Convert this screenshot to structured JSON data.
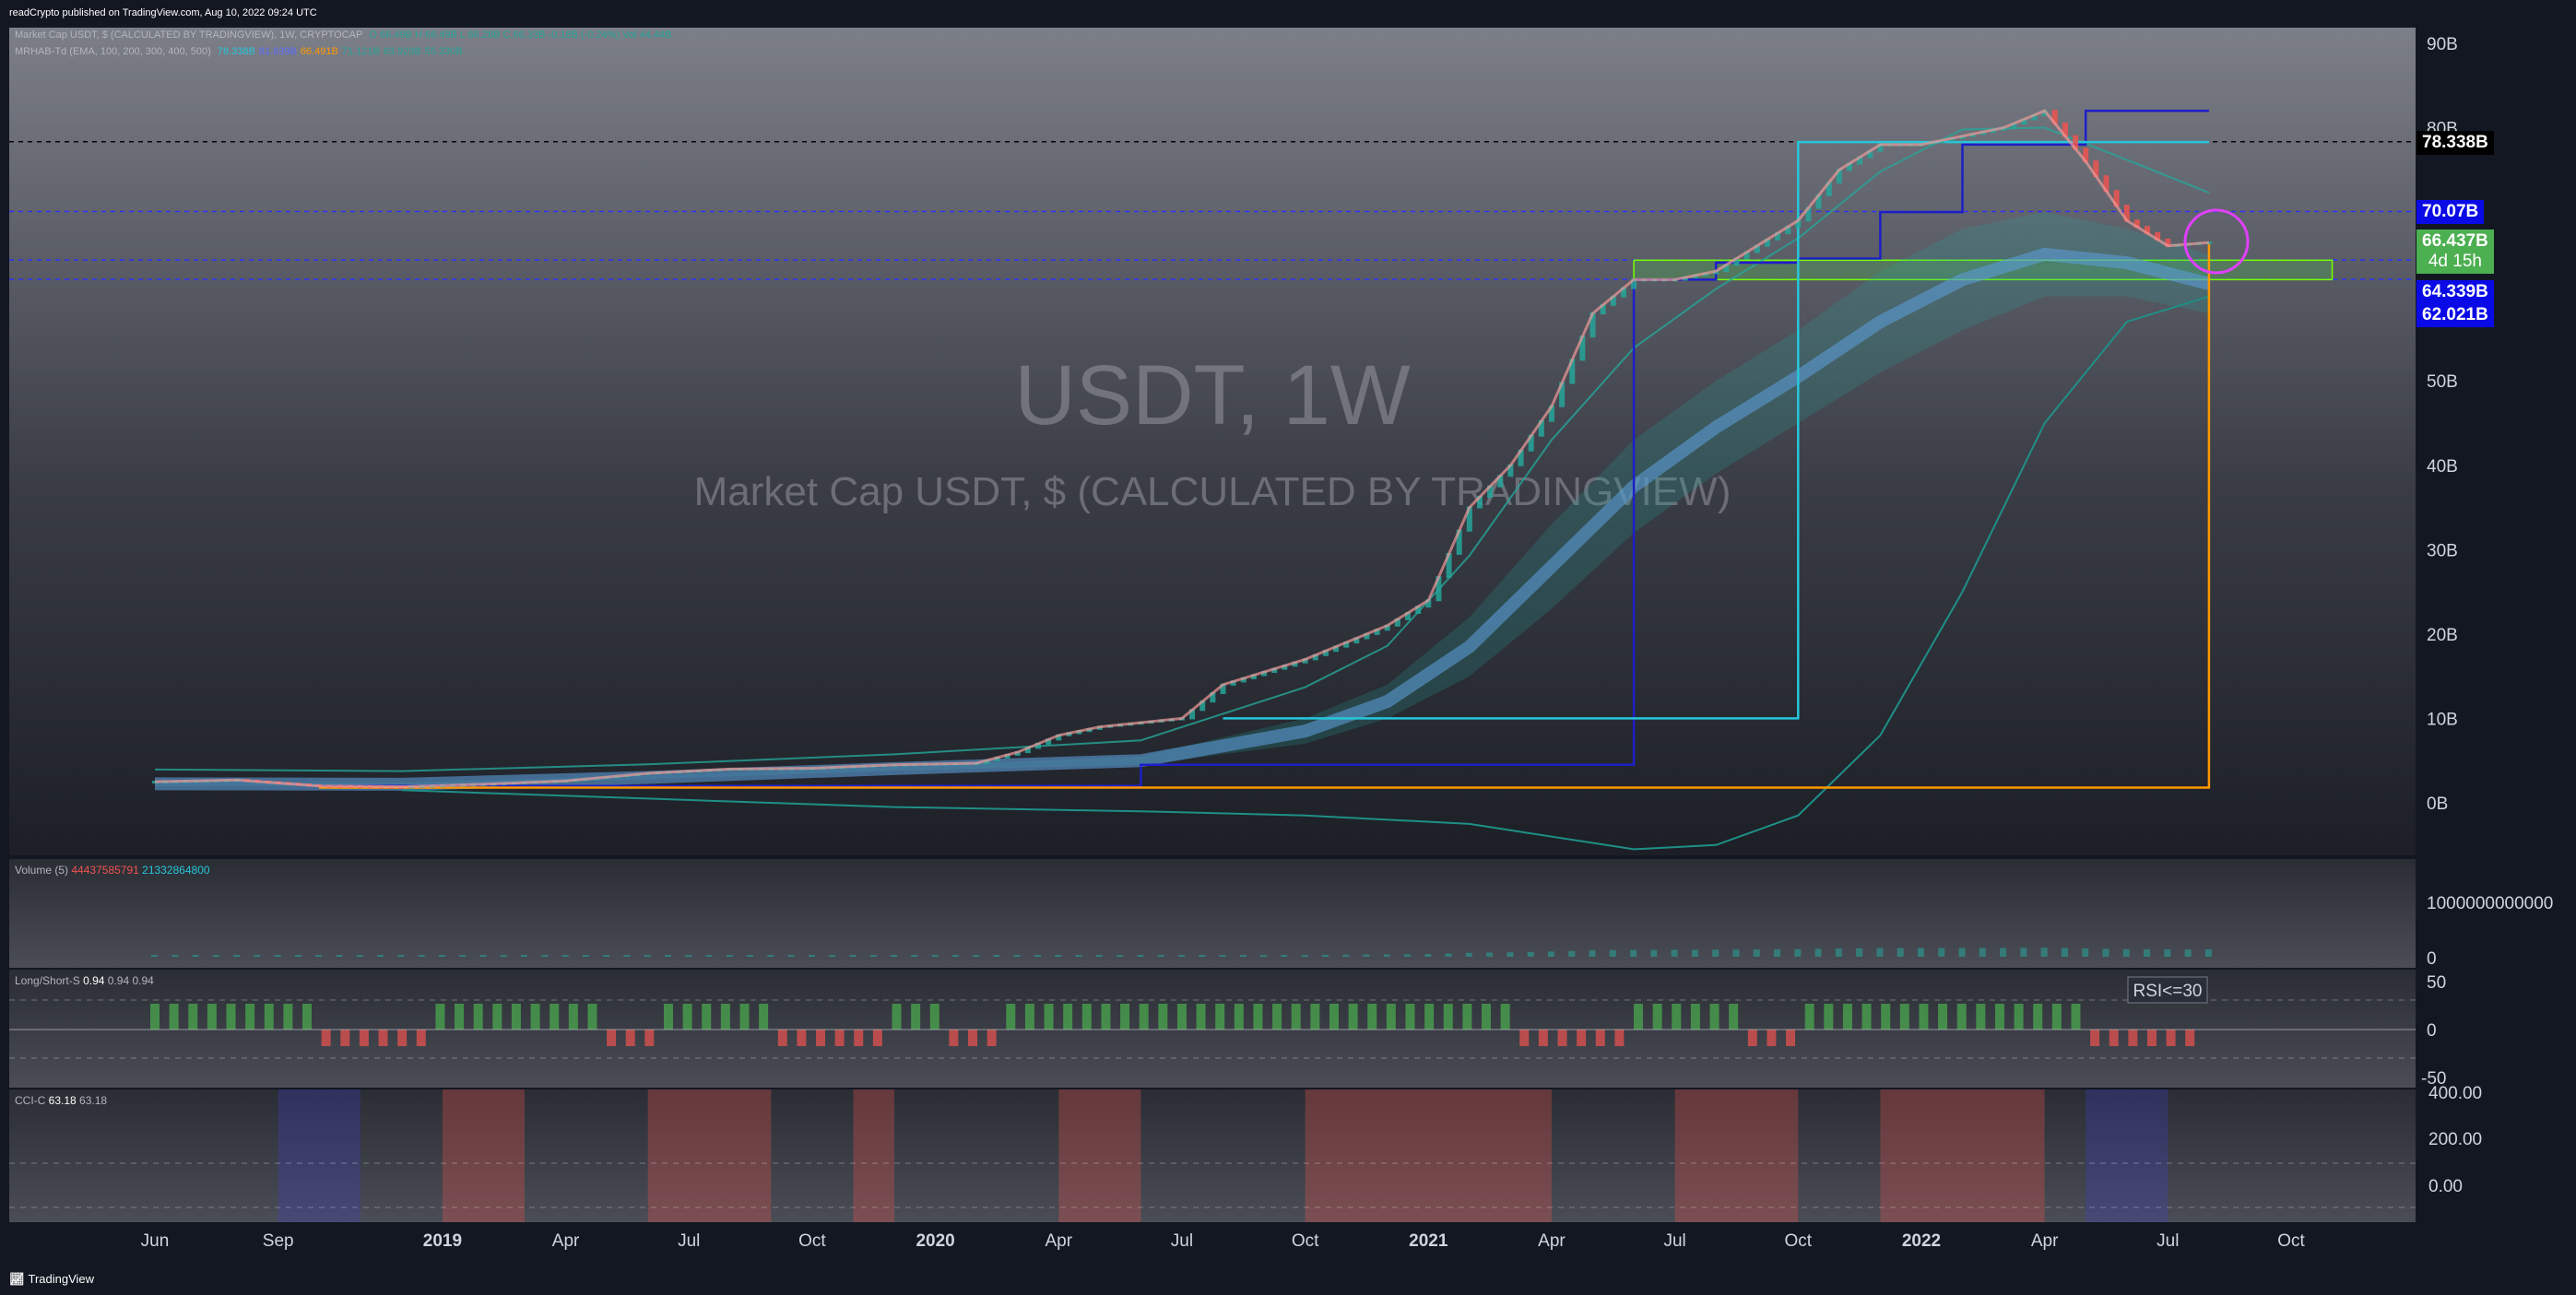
{
  "header": {
    "published": "readCrypto published on TradingView.com, Aug 10, 2022 09:24 UTC"
  },
  "legend": {
    "symbol_line": "Market Cap USDT, $ (CALCULATED BY TRADINGVIEW), 1W, CRYPTOCAP",
    "symbol_values": "O 66.49B  H 66.49B  L 66.28B  C 66.33B  -0.16B (-0.24%)  Vol 44.44B",
    "indicator_name": "MRHAB-Td (EMA, 100, 200, 300, 400, 500)",
    "indicator_values": [
      {
        "text": "78.338B",
        "color": "#26c6da"
      },
      {
        "text": "81.839B",
        "color": "#5b6bff"
      },
      {
        "text": "66.491B",
        "color": "#ff9800"
      },
      {
        "text": "71.121B",
        "color": "#26a69a"
      },
      {
        "text": "63.923B",
        "color": "#26a69a"
      },
      {
        "text": "55.330B",
        "color": "#26a69a"
      }
    ]
  },
  "watermark": {
    "line1": "USDT, 1W",
    "line2": "Market Cap USDT, $ (CALCULATED BY TRADINGVIEW)"
  },
  "price_labels": [
    {
      "text": "78.338B",
      "bg": "#000000",
      "fg": "#ffffff",
      "value": 78.338
    },
    {
      "text": "70.07B",
      "bg": "#0a0ae6",
      "fg": "#ffffff",
      "value": 70.07
    },
    {
      "text": "66.437B",
      "text2": "4d 15h",
      "bg": "#4caf50",
      "fg": "#ffffff",
      "value": 66.437
    },
    {
      "text": "64.339B",
      "bg": "#0a0ae6",
      "fg": "#ffffff",
      "value": 64.339
    },
    {
      "text": "62.021B",
      "bg": "#0a0ae6",
      "fg": "#ffffff",
      "value": 62.021
    }
  ],
  "panes": {
    "volume": {
      "label": "Volume (5)",
      "value1": "44437585791",
      "value2": "21332864800",
      "axis_ticks": [
        "1000000000000",
        "0"
      ]
    },
    "longshort": {
      "label": "Long/Short-S",
      "values": [
        "0.94",
        "0.94",
        "0.94"
      ],
      "axis_ticks": [
        "50",
        "0",
        "-50"
      ],
      "badge": "RSI<=30"
    },
    "cci": {
      "label": "CCI-C",
      "values": [
        "63.18",
        "63.18"
      ],
      "axis_ticks": [
        "400.00",
        "200.00",
        "0.00"
      ]
    }
  },
  "footer": {
    "brand": "TradingView"
  },
  "colors": {
    "background": "#131722",
    "bull": "#26a69a",
    "bear": "#ef5350",
    "cyan": "#26c6da",
    "blue": "#1e1ec8",
    "orange": "#ff9800",
    "magenta": "#e040fb"
  },
  "chart_data": {
    "type": "line",
    "title": "USDT, 1W",
    "subtitle": "Market Cap USDT, $ (CALCULATED BY TRADINGVIEW)",
    "xlabel": "",
    "ylabel": "",
    "y_unit": "B",
    "ylim": [
      -6,
      92
    ],
    "y_ticks": [
      0,
      10,
      20,
      30,
      40,
      50,
      80,
      90
    ],
    "x_ticks": [
      "Jun",
      "Sep",
      "2019",
      "Apr",
      "Jul",
      "Oct",
      "2020",
      "Apr",
      "Jul",
      "Oct",
      "2021",
      "Apr",
      "Jul",
      "Oct",
      "2022",
      "Apr",
      "Jul",
      "Oct"
    ],
    "x_tick_months": [
      0,
      3,
      7,
      10,
      13,
      16,
      19,
      22,
      25,
      28,
      31,
      34,
      37,
      40,
      43,
      46,
      49,
      52
    ],
    "grid": false,
    "horizontal_levels": [
      78.338,
      70.07,
      64.339,
      62.021
    ],
    "series": [
      {
        "name": "",
        "months": [
          0,
          2,
          4,
          6,
          8,
          10,
          12,
          14,
          16,
          18,
          20,
          21,
          22,
          23,
          24,
          25,
          26,
          27,
          28,
          29,
          30,
          31,
          32,
          33,
          34,
          35,
          36,
          37,
          38,
          39,
          40,
          41,
          42,
          43,
          44,
          45,
          46,
          47,
          48,
          49,
          50
        ],
        "values": [
          2.5,
          2.7,
          2.0,
          1.9,
          2.2,
          2.6,
          3.5,
          4.0,
          4.1,
          4.5,
          4.7,
          6.0,
          8.0,
          9.0,
          9.5,
          10.0,
          14.0,
          15.5,
          17.0,
          19.0,
          21.0,
          24.0,
          35.0,
          40.0,
          47.0,
          58.0,
          62.0,
          62.0,
          63.0,
          66.0,
          69.0,
          75.0,
          78.0,
          78.0,
          79.0,
          80.0,
          82.0,
          76.0,
          69.0,
          66.0,
          66.4
        ]
      }
    ],
    "ema_bands": {
      "months": [
        0,
        6,
        12,
        18,
        24,
        28,
        30,
        32,
        34,
        36,
        38,
        40,
        42,
        44,
        46,
        48,
        50
      ],
      "upper": [
        2.5,
        2.4,
        3.2,
        4.3,
        5.5,
        10.0,
        14.0,
        22.0,
        33.0,
        43.0,
        50.0,
        56.0,
        63.0,
        68.0,
        70.0,
        68.0,
        65.0
      ],
      "lower": [
        2.0,
        2.0,
        2.8,
        3.8,
        4.5,
        7.0,
        10.0,
        15.0,
        23.0,
        32.0,
        39.0,
        45.0,
        51.0,
        56.0,
        60.0,
        60.0,
        58.0
      ]
    },
    "long_ema": {
      "months": [
        6,
        12,
        18,
        24,
        28,
        32,
        36,
        38,
        40,
        42,
        44,
        46,
        48,
        50
      ],
      "values": [
        1.5,
        0.5,
        -0.5,
        -1.0,
        -1.5,
        -2.5,
        -5.5,
        -5.0,
        -1.5,
        8.0,
        25.0,
        45.0,
        57.0,
        60.0
      ]
    },
    "step_lines": [
      {
        "name": "",
        "color": "#1e1ec8",
        "months": [
          4,
          24,
          24,
          36,
          36,
          38,
          38,
          40,
          40,
          42,
          42,
          44,
          44,
          47,
          47,
          50
        ],
        "values": [
          2.0,
          2.0,
          4.5,
          4.5,
          62.0,
          62.0,
          64.0,
          64.0,
          64.5,
          64.5,
          70.0,
          70.0,
          78.0,
          78.0,
          82.0,
          82.0
        ]
      },
      {
        "name": "",
        "color": "#26c6da",
        "months": [
          26,
          40,
          40,
          50
        ],
        "values": [
          10.0,
          10.0,
          78.3,
          78.3
        ]
      },
      {
        "name": "",
        "color": "#ff9800",
        "months": [
          4,
          50,
          50
        ],
        "values": [
          1.8,
          1.8,
          66.4
        ]
      }
    ],
    "support_zone": [
      62.0,
      64.3
    ],
    "support_zone_months": [
      36,
      53
    ]
  }
}
